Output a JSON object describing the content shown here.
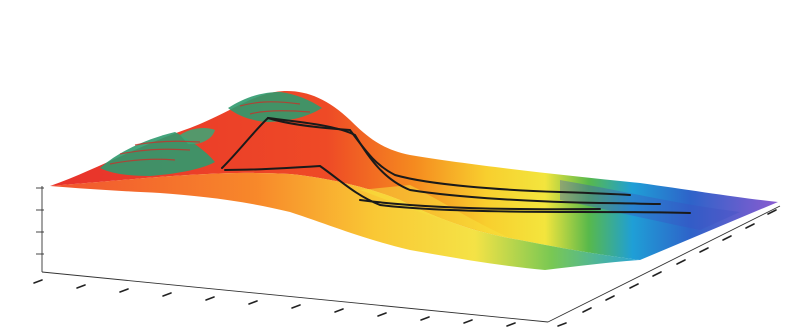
{
  "figure": {
    "type": "3d-surface-terrain",
    "colormap": [
      "#e8322c",
      "#f36b20",
      "#f9a825",
      "#f6e03a",
      "#6cc24a",
      "#1ea0d8",
      "#3b4fc4",
      "#7a4fc9"
    ],
    "overlay_color": "#2f9a6e",
    "trace_line_color": "#1a1a1a",
    "vertical_axis_ticks": [
      "",
      "",
      "",
      "",
      ""
    ]
  }
}
